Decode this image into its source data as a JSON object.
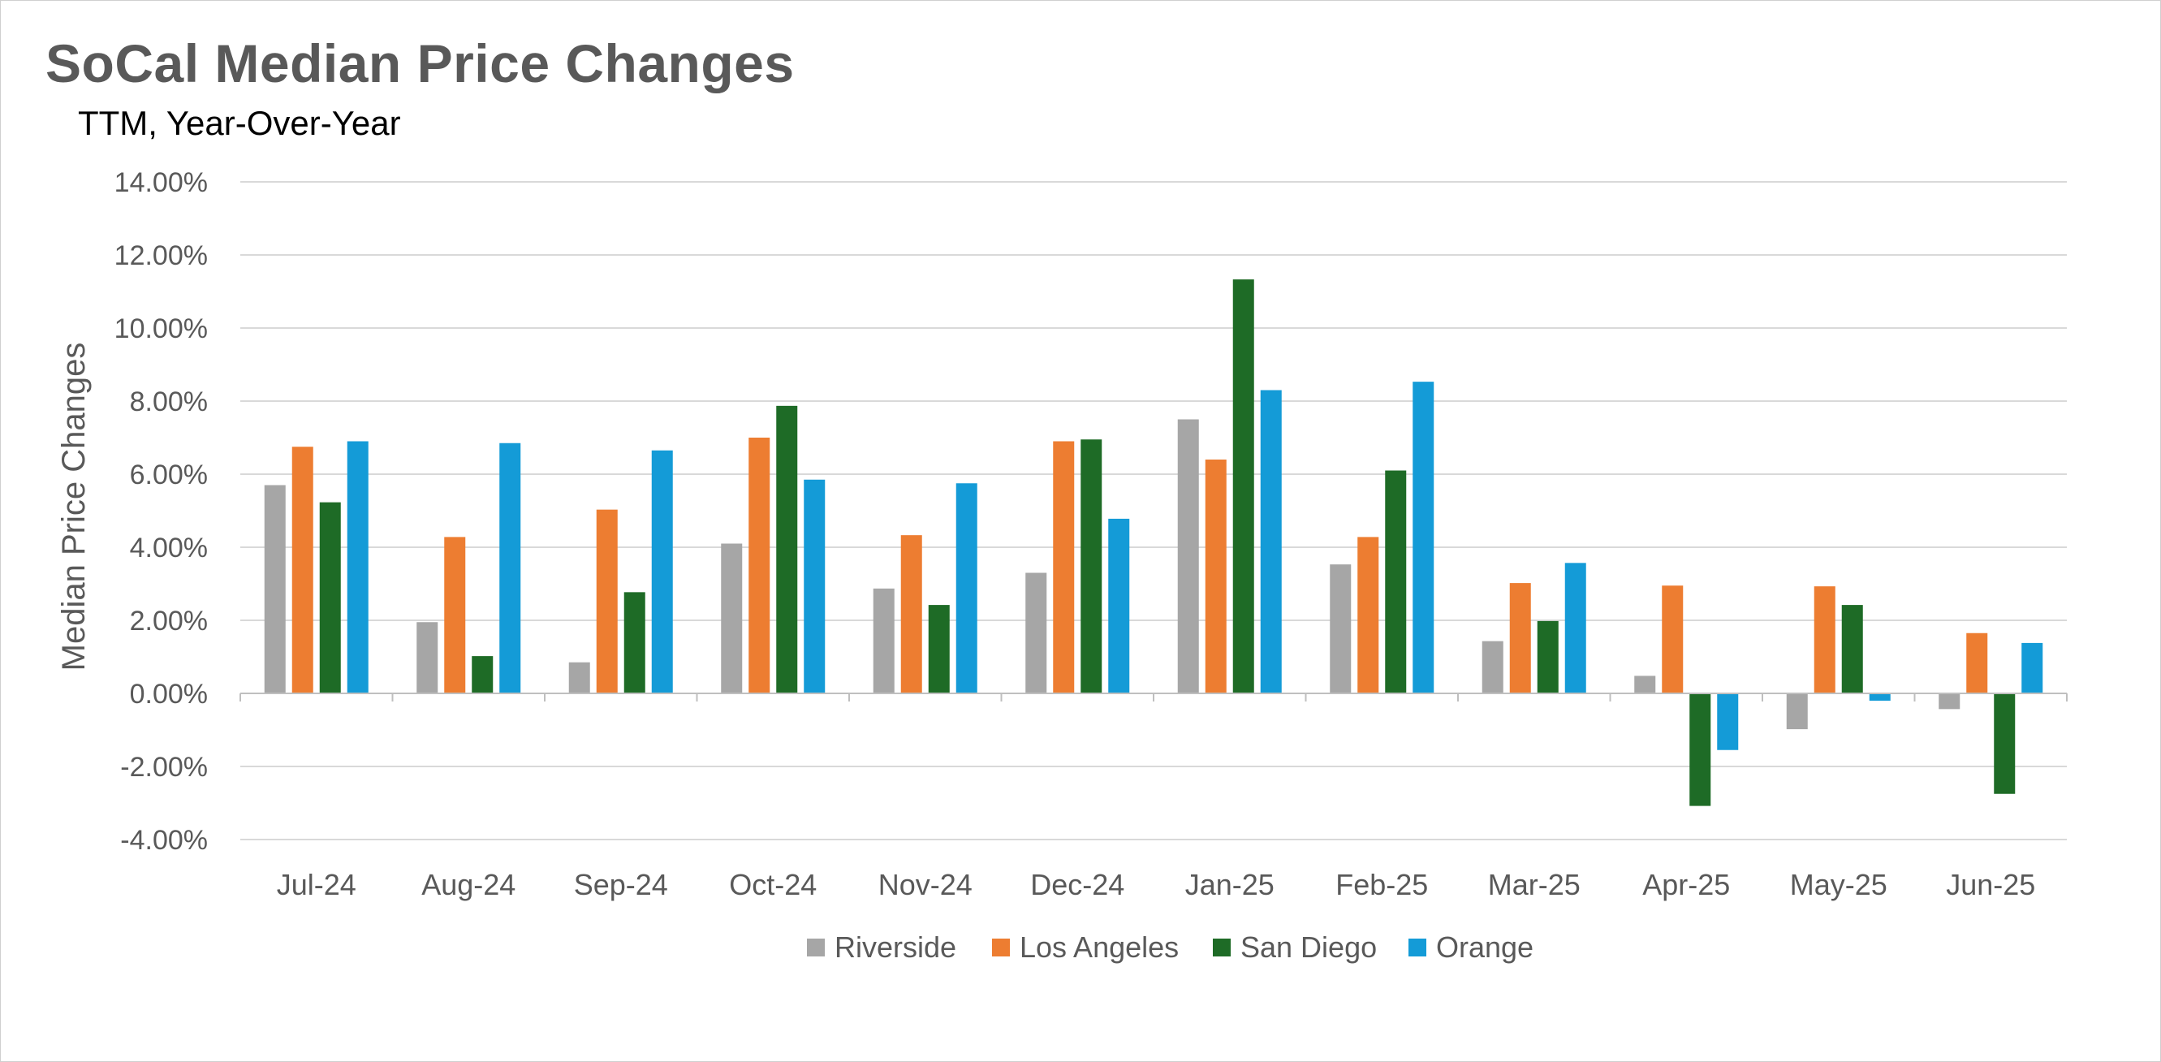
{
  "chart_data": {
    "type": "bar",
    "title": "SoCal Median Price Changes",
    "subtitle": "TTM, Year-Over-Year",
    "ylabel": "Median Price Changes",
    "xlabel": "",
    "ylim": [
      -0.04,
      0.14
    ],
    "yticks": [
      "14.00%",
      "12.00%",
      "10.00%",
      "8.00%",
      "6.00%",
      "4.00%",
      "2.00%",
      "0.00%",
      "-2.00%",
      "-4.00%"
    ],
    "categories": [
      "Jul-24",
      "Aug-24",
      "Sep-24",
      "Oct-24",
      "Nov-24",
      "Dec-24",
      "Jan-25",
      "Feb-25",
      "Mar-25",
      "Apr-25",
      "May-25",
      "Jun-25"
    ],
    "series": [
      {
        "name": "Riverside",
        "color": "#a6a6a6",
        "values": [
          0.057,
          0.0195,
          0.0085,
          0.041,
          0.0287,
          0.033,
          0.075,
          0.0353,
          0.0143,
          0.0048,
          -0.0098,
          -0.0043
        ]
      },
      {
        "name": "Los Angeles",
        "color": "#ed7d31",
        "values": [
          0.0675,
          0.0428,
          0.0503,
          0.07,
          0.0433,
          0.069,
          0.064,
          0.0428,
          0.0302,
          0.0295,
          0.0293,
          0.0165
        ]
      },
      {
        "name": "San Diego",
        "color": "#1e6b26",
        "values": [
          0.0523,
          0.0102,
          0.0277,
          0.0787,
          0.0242,
          0.0695,
          0.1133,
          0.061,
          0.0198,
          -0.0308,
          0.0242,
          -0.0275
        ]
      },
      {
        "name": "Orange",
        "color": "#149bd7",
        "values": [
          0.069,
          0.0685,
          0.0665,
          0.0585,
          0.0575,
          0.0478,
          0.083,
          0.0853,
          0.0357,
          -0.0155,
          -0.002,
          0.0138
        ]
      }
    ],
    "grid": true,
    "legend": "bottom"
  }
}
